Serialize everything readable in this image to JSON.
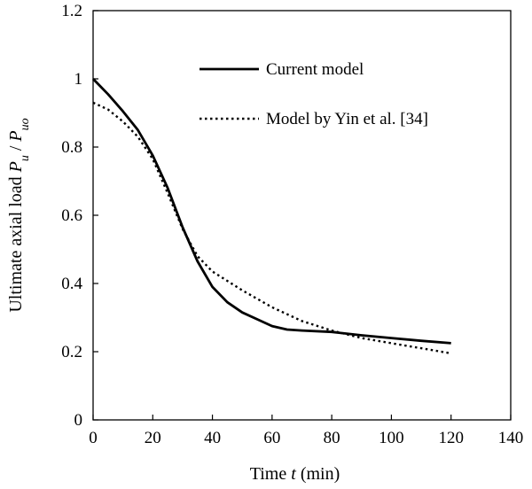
{
  "chart_data": {
    "type": "line",
    "xlabel_parts": [
      "Time ",
      "t",
      " (min)"
    ],
    "ylabel_parts": [
      "Ultimate  axial  load ",
      "P",
      "u",
      " / ",
      "P",
      "uo"
    ],
    "xlim": [
      0,
      140
    ],
    "ylim": [
      0,
      1.2
    ],
    "xticks": [
      0,
      20,
      40,
      60,
      80,
      100,
      120,
      140
    ],
    "yticks": [
      0,
      0.2,
      0.4,
      0.6,
      0.8,
      1,
      1.2
    ],
    "grid": false,
    "legend": {
      "placement": "top-right"
    },
    "series": [
      {
        "name": "Current model",
        "style": "solid",
        "color": "#000000",
        "x": [
          0,
          5,
          10,
          15,
          20,
          25,
          30,
          35,
          40,
          45,
          50,
          55,
          60,
          65,
          70,
          80,
          90,
          100,
          110,
          120
        ],
        "y": [
          1.0,
          0.955,
          0.905,
          0.85,
          0.775,
          0.68,
          0.565,
          0.465,
          0.39,
          0.345,
          0.315,
          0.295,
          0.275,
          0.265,
          0.262,
          0.258,
          0.248,
          0.24,
          0.232,
          0.225
        ]
      },
      {
        "name": "Model by Yin et al. [34]",
        "style": "dotted",
        "color": "#000000",
        "x": [
          0,
          5,
          10,
          15,
          20,
          25,
          30,
          35,
          40,
          50,
          60,
          70,
          80,
          90,
          100,
          110,
          120
        ],
        "y": [
          0.93,
          0.91,
          0.875,
          0.83,
          0.765,
          0.665,
          0.56,
          0.48,
          0.435,
          0.38,
          0.33,
          0.29,
          0.262,
          0.24,
          0.225,
          0.21,
          0.195
        ]
      }
    ]
  }
}
